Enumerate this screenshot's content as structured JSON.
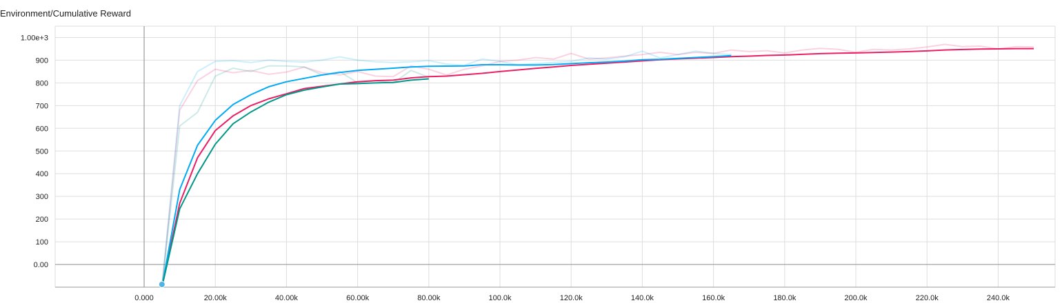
{
  "chart_data": {
    "type": "line",
    "title": "Environment/Cumulative Reward",
    "xlabel": "",
    "ylabel": "",
    "xlim": [
      -25000,
      256000
    ],
    "ylim": [
      -100,
      1050
    ],
    "x_ticks": [
      {
        "value": 0,
        "label": "0.000"
      },
      {
        "value": 20000,
        "label": "20.00k"
      },
      {
        "value": 40000,
        "label": "40.00k"
      },
      {
        "value": 60000,
        "label": "60.00k"
      },
      {
        "value": 80000,
        "label": "80.00k"
      },
      {
        "value": 100000,
        "label": "100.0k"
      },
      {
        "value": 120000,
        "label": "120.0k"
      },
      {
        "value": 140000,
        "label": "140.0k"
      },
      {
        "value": 160000,
        "label": "160.0k"
      },
      {
        "value": 180000,
        "label": "180.0k"
      },
      {
        "value": 200000,
        "label": "200.0k"
      },
      {
        "value": 220000,
        "label": "220.0k"
      },
      {
        "value": 240000,
        "label": "240.0k"
      }
    ],
    "y_ticks": [
      {
        "value": 0,
        "label": "0.00"
      },
      {
        "value": 100,
        "label": "100"
      },
      {
        "value": 200,
        "label": "200"
      },
      {
        "value": 300,
        "label": "300"
      },
      {
        "value": 400,
        "label": "400"
      },
      {
        "value": 500,
        "label": "500"
      },
      {
        "value": 600,
        "label": "600"
      },
      {
        "value": 700,
        "label": "700"
      },
      {
        "value": 800,
        "label": "800"
      },
      {
        "value": 900,
        "label": "900"
      },
      {
        "value": 1000,
        "label": "1.00e+3"
      }
    ],
    "grid": true,
    "series": [
      {
        "color": "#e91e63",
        "raw": [
          [
            5000,
            -100
          ],
          [
            10000,
            680
          ],
          [
            15000,
            810
          ],
          [
            20000,
            860
          ],
          [
            25000,
            845
          ],
          [
            30000,
            855
          ],
          [
            35000,
            838
          ],
          [
            40000,
            848
          ],
          [
            45000,
            870
          ],
          [
            50000,
            845
          ],
          [
            55000,
            835
          ],
          [
            60000,
            850
          ],
          [
            65000,
            830
          ],
          [
            70000,
            828
          ],
          [
            75000,
            875
          ],
          [
            80000,
            860
          ],
          [
            85000,
            835
          ],
          [
            90000,
            860
          ],
          [
            95000,
            875
          ],
          [
            100000,
            895
          ],
          [
            105000,
            900
          ],
          [
            110000,
            912
          ],
          [
            115000,
            905
          ],
          [
            120000,
            930
          ],
          [
            125000,
            905
          ],
          [
            130000,
            910
          ],
          [
            135000,
            918
          ],
          [
            140000,
            925
          ],
          [
            145000,
            935
          ],
          [
            150000,
            925
          ],
          [
            155000,
            935
          ],
          [
            160000,
            930
          ],
          [
            165000,
            945
          ],
          [
            170000,
            938
          ],
          [
            175000,
            942
          ],
          [
            180000,
            932
          ],
          [
            185000,
            945
          ],
          [
            190000,
            952
          ],
          [
            195000,
            948
          ],
          [
            200000,
            935
          ],
          [
            205000,
            948
          ],
          [
            210000,
            945
          ],
          [
            215000,
            950
          ],
          [
            220000,
            958
          ],
          [
            225000,
            970
          ],
          [
            230000,
            960
          ],
          [
            235000,
            962
          ],
          [
            240000,
            950
          ],
          [
            245000,
            960
          ],
          [
            250000,
            958
          ]
        ],
        "smoothed": [
          [
            5000,
            -100
          ],
          [
            10000,
            270
          ],
          [
            15000,
            470
          ],
          [
            20000,
            590
          ],
          [
            25000,
            655
          ],
          [
            30000,
            700
          ],
          [
            35000,
            730
          ],
          [
            40000,
            752
          ],
          [
            45000,
            775
          ],
          [
            50000,
            785
          ],
          [
            55000,
            795
          ],
          [
            60000,
            805
          ],
          [
            65000,
            810
          ],
          [
            70000,
            812
          ],
          [
            75000,
            822
          ],
          [
            80000,
            828
          ],
          [
            85000,
            830
          ],
          [
            90000,
            836
          ],
          [
            95000,
            842
          ],
          [
            100000,
            850
          ],
          [
            105000,
            857
          ],
          [
            110000,
            864
          ],
          [
            115000,
            870
          ],
          [
            120000,
            877
          ],
          [
            125000,
            882
          ],
          [
            130000,
            887
          ],
          [
            135000,
            892
          ],
          [
            140000,
            897
          ],
          [
            145000,
            902
          ],
          [
            150000,
            906
          ],
          [
            155000,
            909
          ],
          [
            160000,
            912
          ],
          [
            165000,
            916
          ],
          [
            170000,
            918
          ],
          [
            175000,
            921
          ],
          [
            180000,
            923
          ],
          [
            185000,
            926
          ],
          [
            190000,
            929
          ],
          [
            195000,
            931
          ],
          [
            200000,
            932
          ],
          [
            205000,
            934
          ],
          [
            210000,
            936
          ],
          [
            215000,
            938
          ],
          [
            220000,
            941
          ],
          [
            225000,
            945
          ],
          [
            230000,
            947
          ],
          [
            235000,
            949
          ],
          [
            240000,
            950
          ],
          [
            245000,
            951
          ],
          [
            250000,
            951
          ]
        ]
      },
      {
        "color": "#03a9f4",
        "raw": [
          [
            5000,
            -100
          ],
          [
            10000,
            700
          ],
          [
            15000,
            850
          ],
          [
            20000,
            895
          ],
          [
            25000,
            898
          ],
          [
            30000,
            890
          ],
          [
            35000,
            900
          ],
          [
            40000,
            895
          ],
          [
            45000,
            892
          ],
          [
            50000,
            900
          ],
          [
            55000,
            915
          ],
          [
            60000,
            900
          ],
          [
            65000,
            893
          ],
          [
            70000,
            890
          ],
          [
            75000,
            893
          ],
          [
            80000,
            898
          ],
          [
            85000,
            883
          ],
          [
            90000,
            878
          ],
          [
            95000,
            905
          ],
          [
            100000,
            895
          ],
          [
            105000,
            880
          ],
          [
            110000,
            885
          ],
          [
            115000,
            890
          ],
          [
            120000,
            895
          ],
          [
            125000,
            910
          ],
          [
            130000,
            905
          ],
          [
            135000,
            915
          ],
          [
            140000,
            940
          ],
          [
            145000,
            910
          ],
          [
            150000,
            925
          ],
          [
            155000,
            940
          ],
          [
            160000,
            930
          ],
          [
            165000,
            925
          ]
        ],
        "smoothed": [
          [
            5000,
            -100
          ],
          [
            10000,
            330
          ],
          [
            15000,
            525
          ],
          [
            20000,
            635
          ],
          [
            25000,
            705
          ],
          [
            30000,
            748
          ],
          [
            35000,
            783
          ],
          [
            40000,
            805
          ],
          [
            45000,
            820
          ],
          [
            50000,
            835
          ],
          [
            55000,
            846
          ],
          [
            60000,
            855
          ],
          [
            65000,
            860
          ],
          [
            70000,
            865
          ],
          [
            75000,
            870
          ],
          [
            80000,
            873
          ],
          [
            85000,
            874
          ],
          [
            90000,
            875
          ],
          [
            95000,
            880
          ],
          [
            100000,
            880
          ],
          [
            105000,
            879
          ],
          [
            110000,
            879
          ],
          [
            115000,
            881
          ],
          [
            120000,
            885
          ],
          [
            125000,
            889
          ],
          [
            130000,
            892
          ],
          [
            135000,
            896
          ],
          [
            140000,
            902
          ],
          [
            145000,
            904
          ],
          [
            150000,
            908
          ],
          [
            155000,
            912
          ],
          [
            160000,
            916
          ],
          [
            165000,
            920
          ]
        ]
      },
      {
        "color": "#009688",
        "raw": [
          [
            5000,
            -100
          ],
          [
            10000,
            610
          ],
          [
            15000,
            670
          ],
          [
            20000,
            830
          ],
          [
            25000,
            865
          ],
          [
            30000,
            850
          ],
          [
            35000,
            875
          ],
          [
            40000,
            875
          ],
          [
            45000,
            870
          ],
          [
            50000,
            835
          ],
          [
            55000,
            850
          ],
          [
            60000,
            800
          ],
          [
            65000,
            810
          ],
          [
            70000,
            800
          ],
          [
            75000,
            855
          ],
          [
            80000,
            825
          ]
        ],
        "smoothed": [
          [
            5000,
            -100
          ],
          [
            10000,
            245
          ],
          [
            15000,
            400
          ],
          [
            20000,
            530
          ],
          [
            25000,
            620
          ],
          [
            30000,
            672
          ],
          [
            35000,
            715
          ],
          [
            40000,
            748
          ],
          [
            45000,
            768
          ],
          [
            50000,
            782
          ],
          [
            55000,
            795
          ],
          [
            60000,
            797
          ],
          [
            65000,
            800
          ],
          [
            70000,
            802
          ],
          [
            75000,
            812
          ],
          [
            80000,
            818
          ]
        ]
      }
    ]
  }
}
